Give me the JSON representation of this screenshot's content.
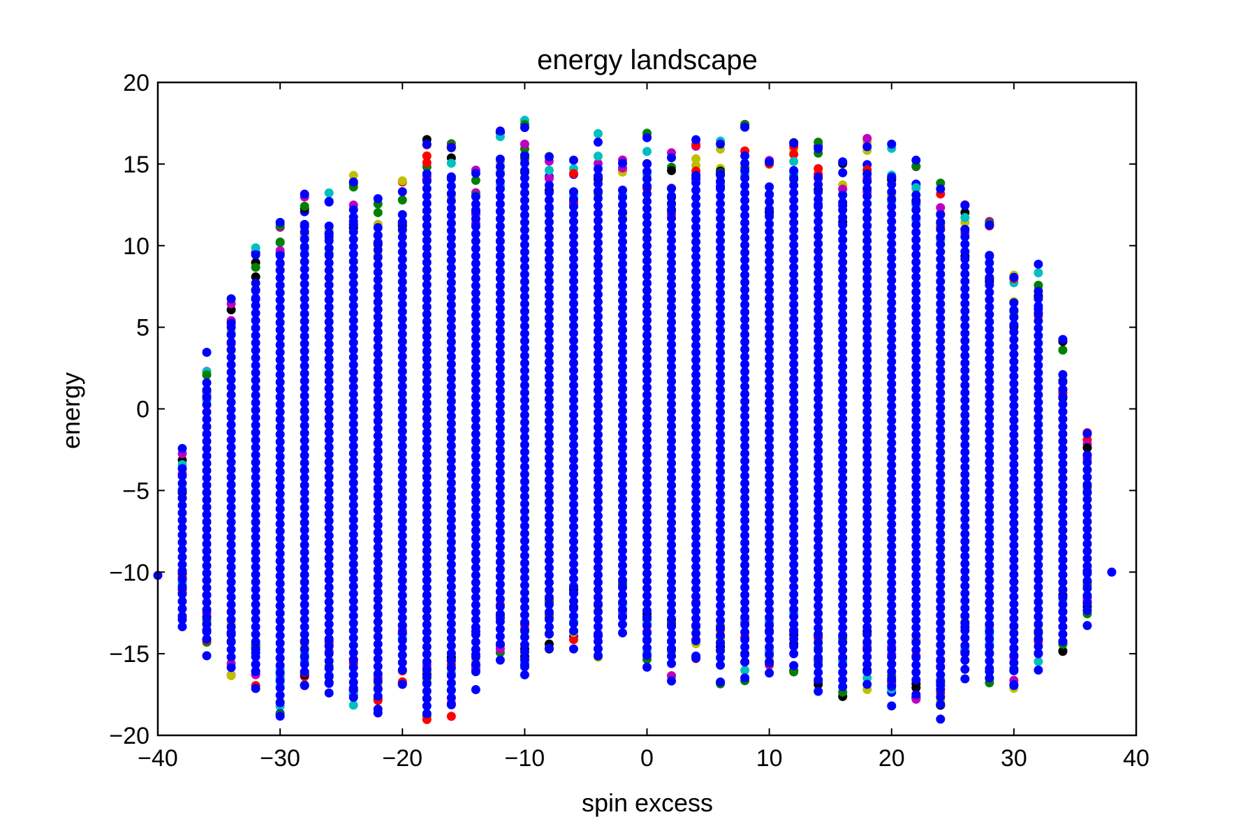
{
  "chart_data": {
    "type": "scatter",
    "title": "energy landscape",
    "xlabel": "spin excess",
    "ylabel": "energy",
    "xlim": [
      -40,
      40
    ],
    "ylim": [
      -20,
      20
    ],
    "xticks": [
      -40,
      -30,
      -20,
      -10,
      0,
      10,
      20,
      30,
      40
    ],
    "yticks": [
      -20,
      -15,
      -10,
      -5,
      0,
      5,
      10,
      15,
      20
    ],
    "xtick_labels": [
      "−40",
      "−30",
      "−20",
      "−10",
      "0",
      "10",
      "20",
      "30",
      "40"
    ],
    "ytick_labels": [
      "−20",
      "−15",
      "−10",
      "−5",
      "0",
      "5",
      "10",
      "15",
      "20"
    ],
    "grid": false,
    "legend": "none",
    "series_colors": [
      "#008000",
      "#ff0000",
      "#00bfbf",
      "#bf00bf",
      "#bfbf00",
      "#000000",
      "#0000ff"
    ],
    "columns": [
      {
        "x": -40,
        "ymin": -10.2,
        "ymax": -10.2
      },
      {
        "x": -38,
        "ymin": -13.6,
        "ymax": -2.3
      },
      {
        "x": -36,
        "ymin": -15.3,
        "ymax": 3.8
      },
      {
        "x": -34,
        "ymin": -16.4,
        "ymax": 7.2
      },
      {
        "x": -32,
        "ymin": -17.3,
        "ymax": 9.9
      },
      {
        "x": -30,
        "ymin": -19.2,
        "ymax": 11.6
      },
      {
        "x": -28,
        "ymin": -17.3,
        "ymax": 13.5
      },
      {
        "x": -26,
        "ymin": -18.0,
        "ymax": 13.4
      },
      {
        "x": -24,
        "ymin": -18.4,
        "ymax": 14.4
      },
      {
        "x": -22,
        "ymin": -18.8,
        "ymax": 13.3
      },
      {
        "x": -20,
        "ymin": -17.2,
        "ymax": 14.1
      },
      {
        "x": -18,
        "ymin": -19.4,
        "ymax": 16.6
      },
      {
        "x": -16,
        "ymin": -18.9,
        "ymax": 16.3
      },
      {
        "x": -14,
        "ymin": -17.3,
        "ymax": 15.2
      },
      {
        "x": -12,
        "ymin": -15.6,
        "ymax": 17.5
      },
      {
        "x": -10,
        "ymin": -17.0,
        "ymax": 17.7
      },
      {
        "x": -8,
        "ymin": -15.0,
        "ymax": 15.9
      },
      {
        "x": -6,
        "ymin": -14.8,
        "ymax": 15.5
      },
      {
        "x": -4,
        "ymin": -15.9,
        "ymax": 16.9
      },
      {
        "x": -2,
        "ymin": -14.4,
        "ymax": 15.6
      },
      {
        "x": 0,
        "ymin": -16.3,
        "ymax": 17.2
      },
      {
        "x": 2,
        "ymin": -16.8,
        "ymax": 15.7
      },
      {
        "x": 4,
        "ymin": -15.4,
        "ymax": 16.5
      },
      {
        "x": 6,
        "ymin": -16.9,
        "ymax": 16.6
      },
      {
        "x": 8,
        "ymin": -16.7,
        "ymax": 17.7
      },
      {
        "x": 10,
        "ymin": -16.7,
        "ymax": 15.8
      },
      {
        "x": 12,
        "ymin": -16.2,
        "ymax": 16.8
      },
      {
        "x": 14,
        "ymin": -17.8,
        "ymax": 16.4
      },
      {
        "x": 16,
        "ymin": -17.8,
        "ymax": 15.3
      },
      {
        "x": 18,
        "ymin": -17.3,
        "ymax": 16.6
      },
      {
        "x": 20,
        "ymin": -18.2,
        "ymax": 16.4
      },
      {
        "x": 22,
        "ymin": -17.8,
        "ymax": 15.3
      },
      {
        "x": 24,
        "ymin": -19.3,
        "ymax": 14.1
      },
      {
        "x": 26,
        "ymin": -16.6,
        "ymax": 13.2
      },
      {
        "x": 28,
        "ymin": -17.1,
        "ymax": 11.6
      },
      {
        "x": 30,
        "ymin": -17.2,
        "ymax": 8.7
      },
      {
        "x": 32,
        "ymin": -16.2,
        "ymax": 9.4
      },
      {
        "x": 34,
        "ymin": -15.0,
        "ymax": 4.3
      },
      {
        "x": 36,
        "ymin": -13.3,
        "ymax": -1.4
      },
      {
        "x": 38,
        "ymin": -10.0,
        "ymax": -10.0
      }
    ]
  }
}
